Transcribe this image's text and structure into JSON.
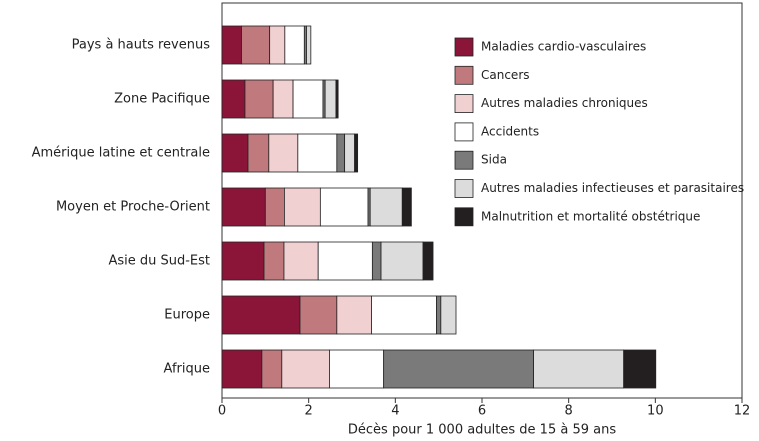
{
  "chart_data": {
    "type": "stacked_barh",
    "categories": [
      "Pays à hauts revenus",
      "Zone Pacifique",
      "Amérique latine et centrale",
      "Moyen et Proche-Orient",
      "Asie du Sud-Est",
      "Europe",
      "Afrique"
    ],
    "series": [
      {
        "name": "Maladies cardio-vasculaires",
        "color": "#8b1538",
        "values": [
          0.45,
          0.53,
          0.6,
          1.0,
          0.97,
          1.8,
          0.92
        ]
      },
      {
        "name": "Cancers",
        "color": "#c07a7e",
        "values": [
          0.65,
          0.65,
          0.48,
          0.44,
          0.46,
          0.85,
          0.46
        ]
      },
      {
        "name": "Autres maladies chroniques",
        "color": "#f0d0d0",
        "values": [
          0.35,
          0.46,
          0.67,
          0.83,
          0.79,
          0.8,
          1.1
        ]
      },
      {
        "name": "Accidents",
        "color": "#ffffff",
        "values": [
          0.45,
          0.69,
          0.9,
          1.1,
          1.25,
          1.5,
          1.25
        ]
      },
      {
        "name": "Sida",
        "color": "#7a7a7a",
        "values": [
          0.05,
          0.05,
          0.18,
          0.05,
          0.2,
          0.1,
          3.46
        ]
      },
      {
        "name": "Autres maladies infectieuses et parasitaires",
        "color": "#dcdcdc",
        "values": [
          0.1,
          0.25,
          0.23,
          0.74,
          0.97,
          0.35,
          2.08
        ]
      },
      {
        "name": "Malnutrition et mortalité obstétrique",
        "color": "#231f20",
        "values": [
          0,
          0.05,
          0.07,
          0.21,
          0.23,
          0,
          0.74
        ]
      }
    ],
    "x_label": "Décès pour 1 000 adultes de 15 à 59 ans",
    "xlim": [
      0,
      12
    ],
    "xticks": [
      0,
      2,
      4,
      6,
      8,
      10,
      12
    ]
  }
}
